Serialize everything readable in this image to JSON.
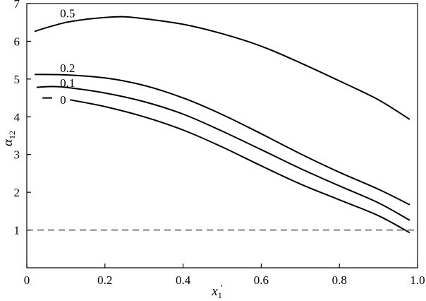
{
  "chart_data": {
    "type": "line",
    "xlabel": {
      "main": "x",
      "sub": "1",
      "prime": "′"
    },
    "ylabel": {
      "main": "α",
      "sub": "12"
    },
    "xlim": [
      0,
      1.0
    ],
    "ylim": [
      0,
      7
    ],
    "xticks": [
      {
        "value": 0,
        "label": "0"
      },
      {
        "value": 0.2,
        "label": "0.2"
      },
      {
        "value": 0.4,
        "label": "0.4"
      },
      {
        "value": 0.6,
        "label": "0.6"
      },
      {
        "value": 0.8,
        "label": "0.8"
      },
      {
        "value": 1.0,
        "label": "1.0"
      }
    ],
    "yticks": [
      {
        "value": 1,
        "label": "1"
      },
      {
        "value": 2,
        "label": "2"
      },
      {
        "value": 3,
        "label": "3"
      },
      {
        "value": 4,
        "label": "4"
      },
      {
        "value": 5,
        "label": "5"
      },
      {
        "value": 6,
        "label": "6"
      },
      {
        "value": 7,
        "label": "7"
      }
    ],
    "reference_line": {
      "y": 1,
      "style": "dashed"
    },
    "grid": false,
    "series": [
      {
        "name": "0.5",
        "label_at": [
          0.085,
          6.75
        ],
        "points": [
          [
            0.02,
            6.26
          ],
          [
            0.05,
            6.36
          ],
          [
            0.1,
            6.5
          ],
          [
            0.15,
            6.58
          ],
          [
            0.2,
            6.63
          ],
          [
            0.25,
            6.65
          ],
          [
            0.3,
            6.6
          ],
          [
            0.4,
            6.45
          ],
          [
            0.5,
            6.2
          ],
          [
            0.6,
            5.87
          ],
          [
            0.7,
            5.43
          ],
          [
            0.8,
            4.95
          ],
          [
            0.9,
            4.45
          ],
          [
            0.98,
            3.93
          ]
        ]
      },
      {
        "name": "0.2",
        "label_at": [
          0.085,
          5.3
        ],
        "points": [
          [
            0.02,
            5.12
          ],
          [
            0.1,
            5.11
          ],
          [
            0.2,
            5.03
          ],
          [
            0.3,
            4.83
          ],
          [
            0.4,
            4.5
          ],
          [
            0.5,
            4.06
          ],
          [
            0.6,
            3.55
          ],
          [
            0.7,
            3.02
          ],
          [
            0.8,
            2.53
          ],
          [
            0.9,
            2.08
          ],
          [
            0.98,
            1.67
          ]
        ]
      },
      {
        "name": "0.1",
        "label_at": [
          0.085,
          4.9
        ],
        "points": [
          [
            0.025,
            4.78
          ],
          [
            0.06,
            4.8
          ],
          [
            0.1,
            4.78
          ],
          [
            0.2,
            4.63
          ],
          [
            0.3,
            4.4
          ],
          [
            0.4,
            4.07
          ],
          [
            0.5,
            3.62
          ],
          [
            0.6,
            3.13
          ],
          [
            0.7,
            2.63
          ],
          [
            0.8,
            2.17
          ],
          [
            0.9,
            1.72
          ],
          [
            0.98,
            1.26
          ]
        ]
      },
      {
        "name": "0",
        "label_at": [
          0.085,
          4.45
        ],
        "points": [
          [
            0.04,
            4.5
          ],
          [
            0.065,
            4.5
          ]
        ],
        "points2": [
          [
            0.11,
            4.45
          ],
          [
            0.2,
            4.27
          ],
          [
            0.3,
            4.0
          ],
          [
            0.4,
            3.65
          ],
          [
            0.5,
            3.2
          ],
          [
            0.6,
            2.7
          ],
          [
            0.7,
            2.22
          ],
          [
            0.8,
            1.8
          ],
          [
            0.9,
            1.38
          ],
          [
            0.98,
            0.93
          ]
        ]
      }
    ]
  }
}
